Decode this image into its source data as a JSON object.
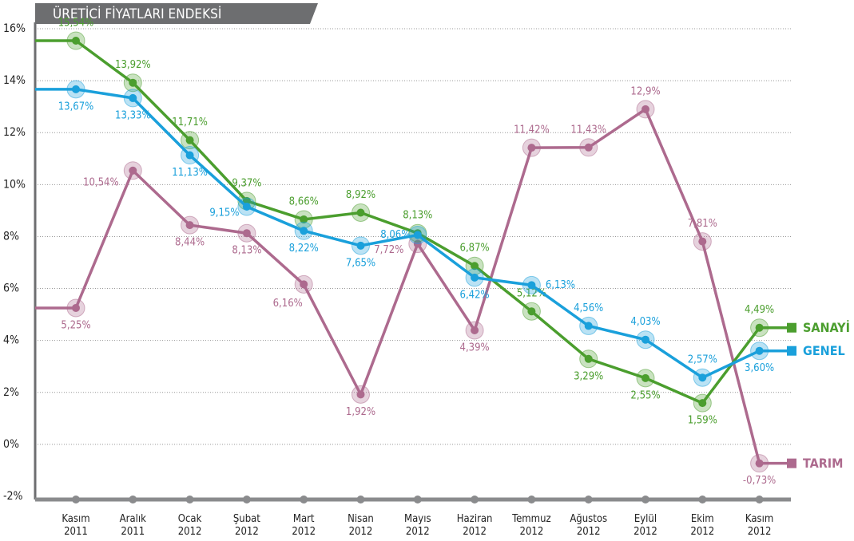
{
  "chart_data": {
    "type": "line",
    "title": "ÜRETİCİ FİYATLARI ENDEKSİ",
    "categories": [
      "Kasım 2011",
      "Aralık 2011",
      "Ocak 2012",
      "Şubat 2012",
      "Mart 2012",
      "Nisan 2012",
      "Mayıs 2012",
      "Haziran 2012",
      "Temmuz 2012",
      "Ağustos 2012",
      "Eylül 2012",
      "Ekim 2012",
      "Kasım 2012"
    ],
    "series": [
      {
        "name": "SANAYİ",
        "color": "#4b9e2e",
        "values": [
          15.54,
          13.92,
          11.71,
          9.37,
          8.66,
          8.92,
          8.13,
          6.87,
          5.12,
          3.29,
          2.55,
          1.59,
          4.49
        ],
        "value_labels": [
          "15,54%",
          "13,92%",
          "11,71%",
          "9,37%",
          "8,66%",
          "8,92%",
          "8,13%",
          "6,87%",
          "5,12%",
          "3,29%",
          "2,55%",
          "1,59%",
          "4,49%"
        ]
      },
      {
        "name": "GENEL",
        "color": "#1aa0db",
        "values": [
          13.67,
          13.33,
          11.13,
          9.15,
          8.22,
          7.65,
          8.06,
          6.42,
          6.13,
          4.56,
          4.03,
          2.57,
          3.6
        ],
        "value_labels": [
          "13,67%",
          "13,33%",
          "11,13%",
          "9,15%",
          "8,22%",
          "7,65%",
          "8,06%",
          "6,42%",
          "6,13%",
          "4,56%",
          "4,03%",
          "2,57%",
          "3,60%"
        ]
      },
      {
        "name": "TARIM",
        "color": "#ad6a8e",
        "values": [
          5.25,
          10.54,
          8.44,
          8.13,
          6.16,
          1.92,
          7.72,
          4.39,
          11.42,
          11.43,
          12.9,
          7.81,
          -0.73
        ],
        "value_labels": [
          "5,25%",
          "10,54%",
          "8,44%",
          "8,13%",
          "6,16%",
          "1,92%",
          "7,72%",
          "4,39%",
          "11,42%",
          "11,43%",
          "12,9%",
          "7,81%",
          "-0,73%"
        ]
      }
    ],
    "ylim": [
      -2,
      16
    ],
    "yticks": [
      {
        "value": -2,
        "label": "-2%"
      },
      {
        "value": 0,
        "label": "0%"
      },
      {
        "value": 2,
        "label": "2%"
      },
      {
        "value": 4,
        "label": "4%"
      },
      {
        "value": 6,
        "label": "6%"
      },
      {
        "value": 8,
        "label": "8%"
      },
      {
        "value": 10,
        "label": "10%"
      },
      {
        "value": 12,
        "label": "12%"
      },
      {
        "value": 14,
        "label": "14%"
      },
      {
        "value": 16,
        "label": "16%"
      }
    ],
    "grid": true
  }
}
